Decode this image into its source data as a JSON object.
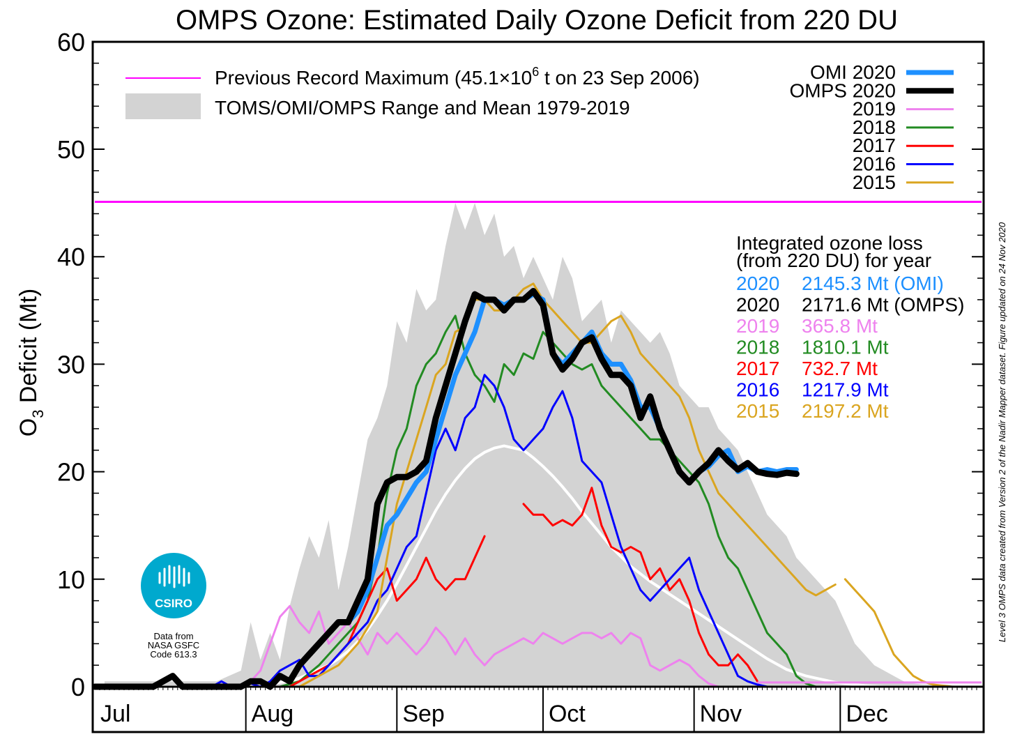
{
  "chart_data": {
    "type": "line",
    "title": "OMPS Ozone: Estimated Daily Ozone Deficit from 220 DU",
    "ylabel_main": "O",
    "ylabel_sub": "3",
    "ylabel_rest": " Deficit (Mt)",
    "ylim": [
      0,
      60
    ],
    "yticks": [
      "0",
      "10",
      "20",
      "30",
      "40",
      "50",
      "60"
    ],
    "months": [
      "Jul",
      "Aug",
      "Sep",
      "Oct",
      "Nov",
      "Dec"
    ],
    "x_units": "day of year",
    "xlim": [
      182,
      364
    ],
    "month_starts": [
      182,
      213,
      244,
      274,
      305,
      335
    ],
    "grid": false,
    "record": {
      "label_prefix": "Previous Record Maximum (45.1×10",
      "label_sup": "6",
      "label_suffix": "  t on 23 Sep 2006)",
      "value": 45.1,
      "color": "#ff00ff"
    },
    "range_label": "TOMS/OMI/OMPS Range and Mean 1979-2019",
    "range_color": "#d3d3d3",
    "mean_color": "#ffffff",
    "range": {
      "x": [
        184,
        195,
        207,
        212,
        214,
        216,
        218,
        220,
        222,
        224,
        226,
        228,
        230,
        232,
        234,
        236,
        238,
        240,
        242,
        244,
        246,
        248,
        250,
        252,
        254,
        256,
        258,
        260,
        262,
        264,
        266,
        268,
        270,
        272,
        274,
        276,
        278,
        280,
        282,
        284,
        286,
        288,
        290,
        292,
        294,
        296,
        298,
        300,
        302,
        304,
        306,
        308,
        310,
        312,
        314,
        316,
        318,
        320,
        322,
        324,
        326,
        328,
        330,
        332,
        334,
        336,
        338,
        340,
        342,
        344,
        346,
        348,
        350,
        352,
        356,
        360,
        364
      ],
      "upper": [
        0.5,
        0.5,
        0.5,
        1.5,
        6,
        2.5,
        5,
        2.5,
        7.5,
        11,
        14,
        12,
        15.5,
        9,
        13,
        18,
        23,
        25,
        28,
        34,
        32,
        37,
        35,
        36,
        41,
        45,
        42.5,
        45,
        42,
        44,
        40,
        41,
        38,
        40,
        38,
        36,
        40,
        38,
        34,
        35,
        36,
        32,
        35,
        34,
        33,
        32,
        33,
        31,
        28,
        27,
        26,
        26,
        24,
        23,
        22,
        20,
        18,
        16,
        15,
        14,
        12,
        11,
        10,
        9,
        8,
        6,
        4,
        3,
        2,
        1.5,
        1,
        0.5,
        0.3,
        0.2,
        0.2,
        0.1,
        0
      ],
      "mean": [
        0,
        0,
        0,
        0,
        0.2,
        0.2,
        0.3,
        0.4,
        0.5,
        0.8,
        1.2,
        1.6,
        2,
        2.6,
        3.3,
        4.2,
        5.3,
        6.6,
        8,
        9.6,
        11.3,
        13,
        14.7,
        16.4,
        17.9,
        19.2,
        20.3,
        21.2,
        21.8,
        22.2,
        22.4,
        22.2,
        22,
        21.3,
        20.5,
        19.6,
        18.6,
        17.5,
        16.3,
        15.2,
        14.1,
        13,
        12.1,
        11.2,
        10.5,
        9.8,
        9.2,
        8.6,
        8,
        7.4,
        6.8,
        6.2,
        5.6,
        5,
        4.4,
        3.8,
        3.2,
        2.6,
        2.1,
        1.6,
        1.3,
        1,
        0.8,
        0.6,
        0.4,
        0.3,
        0.2,
        0.1,
        0.05,
        0,
        0,
        0,
        0,
        0,
        0,
        0,
        0
      ]
    },
    "series": [
      {
        "name": "2019",
        "color": "#ee82ee",
        "width": 3,
        "total": " 365.8 Mt",
        "x": [
          208,
          210,
          212,
          214,
          216,
          218,
          220,
          222,
          224,
          226,
          228,
          230,
          232,
          234,
          236,
          238,
          240,
          242,
          244,
          246,
          248,
          250,
          252,
          254,
          256,
          258,
          260,
          262,
          264,
          266,
          268,
          270,
          272,
          274,
          276,
          278,
          280,
          282,
          284,
          286,
          288,
          290,
          292,
          294,
          296,
          298,
          300,
          302,
          304,
          306,
          308,
          310
        ],
        "y": [
          0,
          0,
          0,
          0.5,
          1.5,
          4,
          6.5,
          7.5,
          6,
          5,
          7,
          4,
          5,
          6,
          4.5,
          3,
          5,
          4,
          5,
          4,
          3,
          4,
          5.5,
          4.5,
          3,
          4.5,
          3,
          2,
          3,
          3.5,
          4,
          4.5,
          4,
          5,
          4.5,
          4,
          4.5,
          5,
          5,
          4.5,
          5,
          4,
          5,
          4.5,
          2,
          1.5,
          2,
          2.5,
          2,
          1,
          0.3,
          0
        ]
      },
      {
        "name": "2018",
        "color": "#228b22",
        "width": 3,
        "total": "1810.1 Mt",
        "x": [
          220,
          224,
          228,
          232,
          236,
          238,
          240,
          242,
          244,
          246,
          248,
          250,
          252,
          254,
          256,
          258,
          260,
          262,
          264,
          266,
          268,
          270,
          272,
          274,
          276,
          278,
          280,
          282,
          284,
          286,
          288,
          290,
          292,
          294,
          296,
          298,
          300,
          302,
          304,
          306,
          308,
          310,
          312,
          314,
          316,
          318,
          320,
          322,
          324,
          326,
          328,
          330,
          332
        ],
        "y": [
          0,
          0.5,
          2,
          4,
          6,
          8,
          12,
          18,
          22,
          24,
          28,
          30,
          31,
          33,
          34.5,
          31,
          29,
          28,
          26.5,
          30,
          29,
          31,
          30.5,
          33,
          32,
          31,
          30,
          29.5,
          30,
          28,
          27,
          26,
          25,
          24,
          23,
          23,
          22,
          21,
          20,
          19,
          17,
          14,
          12,
          11,
          9,
          7,
          5,
          4,
          3,
          1,
          0.3,
          0,
          0
        ]
      },
      {
        "name": "2017",
        "color": "#ff0000",
        "width": 3,
        "total": " 732.7 Mt",
        "segments": [
          {
            "x": [
              222,
              226,
              230,
              234,
              236,
              238,
              240,
              242,
              244,
              246,
              248,
              250,
              252,
              254,
              256,
              258,
              260,
              262
            ],
            "y": [
              0,
              1,
              2,
              4,
              6,
              8,
              10,
              11,
              8,
              9,
              10,
              12,
              10,
              9,
              10,
              10,
              12,
              14
            ]
          },
          {
            "x": [
              270,
              272,
              274,
              276,
              278,
              280,
              282,
              284,
              286,
              288,
              290,
              292,
              294,
              296,
              298,
              300,
              302,
              304,
              306,
              308,
              310,
              312,
              314,
              316,
              318
            ],
            "y": [
              17,
              16,
              16,
              15,
              15.5,
              15,
              16,
              18.5,
              15,
              13,
              12.5,
              13,
              12.5,
              10,
              11,
              9,
              10,
              8,
              5,
              3,
              2,
              2,
              3,
              2,
              0.5
            ]
          }
        ]
      },
      {
        "name": "2016",
        "color": "#0000ff",
        "width": 3,
        "total": "1217.9 Mt",
        "x": [
          206,
          208,
          210,
          212,
          214,
          216,
          218,
          220,
          222,
          224,
          226,
          228,
          230,
          232,
          234,
          236,
          238,
          240,
          242,
          244,
          246,
          248,
          250,
          252,
          254,
          256,
          258,
          260,
          262,
          264,
          266,
          268,
          270,
          272,
          274,
          276,
          278,
          280,
          282,
          284,
          286,
          288,
          290,
          292,
          294,
          296,
          298,
          300,
          302,
          304,
          306,
          308,
          310,
          312,
          314,
          316,
          318,
          320,
          322
        ],
        "y": [
          0,
          0.5,
          0,
          0,
          0.3,
          0,
          0.5,
          1.5,
          2,
          2.5,
          1,
          1,
          2,
          3,
          4,
          5,
          6,
          8,
          9,
          11,
          13,
          14,
          18,
          22,
          24,
          22,
          25,
          26,
          29,
          28,
          26,
          23,
          22,
          23,
          24,
          26,
          27.5,
          25,
          21,
          20,
          19,
          16,
          13,
          11,
          9,
          8,
          9,
          10,
          11,
          12,
          9,
          7,
          5,
          3,
          1,
          0.5,
          0.2,
          0,
          0
        ]
      },
      {
        "name": "2015",
        "color": "#daa520",
        "width": 3,
        "total": "2197.2 Mt",
        "segments": [
          {
            "x": [
              224,
              228,
              232,
              236,
              240,
              242,
              244,
              246,
              248,
              250,
              252,
              254,
              256,
              258,
              260,
              262,
              264,
              266,
              268,
              270,
              272,
              274,
              276,
              278,
              280,
              282,
              284,
              286,
              288,
              290,
              292,
              294,
              296,
              298,
              300,
              302,
              304,
              306,
              308,
              310,
              312,
              314,
              316,
              318,
              320,
              322,
              324,
              326,
              328,
              330,
              332,
              334
            ],
            "y": [
              0,
              1,
              2,
              4,
              7,
              12,
              17,
              20,
              23,
              26,
              29,
              30,
              33,
              33.5,
              36,
              36,
              35,
              35,
              36,
              37,
              37.5,
              36,
              35,
              34,
              33,
              32,
              32,
              33,
              34,
              34.5,
              33,
              31,
              30,
              29,
              28,
              27,
              25,
              22,
              20,
              18,
              17,
              16,
              15,
              14,
              13,
              12,
              11,
              10,
              9,
              8.5,
              9,
              9.5
            ]
          },
          {
            "x": [
              336,
              338,
              340,
              342,
              344,
              346,
              348,
              350,
              352,
              354,
              356,
              358,
              360
            ],
            "y": [
              10,
              9,
              8,
              7,
              5,
              3,
              2,
              1,
              0.5,
              0.2,
              0.1,
              0,
              0
            ]
          }
        ]
      },
      {
        "name": "OMI 2020",
        "color": "#1e90ff",
        "width": 7,
        "total": "2145.3 Mt (OMI)",
        "total_year": "2020",
        "x": [
          182,
          188,
          194,
          198,
          200,
          202,
          206,
          210,
          212,
          214,
          216,
          218,
          220,
          222,
          224,
          226,
          228,
          230,
          232,
          234,
          236,
          238,
          240,
          242,
          244,
          246,
          248,
          250,
          252,
          254,
          256,
          258,
          260,
          262,
          264,
          266,
          268,
          270,
          272,
          274,
          276,
          278,
          280,
          282,
          284,
          286,
          288,
          290,
          292,
          294,
          296,
          298,
          300,
          302,
          304,
          306,
          308,
          310,
          312,
          314,
          316,
          318,
          320,
          322,
          324,
          326
        ],
        "y": [
          0,
          0,
          0,
          1,
          0,
          0,
          0,
          0,
          0,
          0.5,
          0.5,
          0,
          1,
          0.5,
          2,
          3,
          4,
          5,
          6,
          6,
          7,
          9,
          12,
          15,
          16,
          17.5,
          19,
          20,
          23,
          26,
          29,
          31,
          33,
          36,
          36,
          35.5,
          36,
          36,
          36.5,
          36,
          31,
          30,
          31,
          32,
          33,
          31,
          30,
          30,
          28.5,
          26,
          26,
          24,
          22,
          20,
          19,
          20,
          20.5,
          21.5,
          22,
          20,
          20.5,
          20,
          20.2,
          20,
          20.2,
          20.2
        ]
      },
      {
        "name": "OMPS 2020",
        "color": "#000000",
        "width": 9,
        "total": "2171.6 Mt (OMPS)",
        "total_year": "2020",
        "x": [
          182,
          188,
          194,
          198,
          200,
          202,
          206,
          210,
          212,
          214,
          216,
          218,
          220,
          222,
          224,
          226,
          228,
          230,
          232,
          234,
          236,
          238,
          240,
          242,
          244,
          246,
          248,
          250,
          252,
          254,
          256,
          258,
          260,
          262,
          264,
          266,
          268,
          270,
          272,
          274,
          276,
          278,
          280,
          282,
          284,
          286,
          288,
          290,
          292,
          294,
          296,
          298,
          300,
          302,
          304,
          306,
          308,
          310,
          312,
          314,
          316,
          318,
          320,
          322,
          324,
          326
        ],
        "y": [
          0,
          0,
          0,
          1,
          0,
          0,
          0,
          0,
          0,
          0.5,
          0.5,
          0,
          1,
          0.5,
          2,
          3,
          4,
          5,
          6,
          6,
          8,
          10,
          17,
          19,
          19.5,
          19.5,
          20,
          21,
          25,
          28,
          31,
          34,
          36.5,
          36,
          36,
          35,
          36,
          36,
          36.8,
          35.5,
          31,
          29.5,
          30.5,
          32,
          32.5,
          30.5,
          29,
          29,
          28,
          25,
          27,
          24,
          22,
          20,
          19,
          20,
          20.8,
          22,
          21,
          20.2,
          20.8,
          20,
          19.8,
          19.7,
          19.9,
          19.8
        ]
      }
    ],
    "legend_order": [
      "OMI 2020",
      "OMPS 2020",
      "2019",
      "2018",
      "2017",
      "2016",
      "2015"
    ],
    "loss_heading_1": "Integrated ozone loss",
    "loss_heading_2": "(from 220 DU) for year",
    "loss_rows": [
      {
        "year": "2020",
        "total": "2145.3 Mt (OMI)",
        "color": "#1e90ff"
      },
      {
        "year": "2020",
        "total": "2171.6 Mt (OMPS)",
        "color": "#000000"
      },
      {
        "year": "2019",
        "total": " 365.8 Mt",
        "color": "#ee82ee"
      },
      {
        "year": "2018",
        "total": "1810.1 Mt",
        "color": "#228b22"
      },
      {
        "year": "2017",
        "total": " 732.7 Mt",
        "color": "#ff0000"
      },
      {
        "year": "2016",
        "total": "1217.9 Mt",
        "color": "#0000ff"
      },
      {
        "year": "2015",
        "total": "2197.2 Mt",
        "color": "#daa520"
      }
    ],
    "side_note": "Level 3 OMPS data created from Version 2 of the Nadir Mapper dataset. Figure updated on 24 Nov 2020",
    "logo_text": "CSIRO",
    "logo_color": "#00a9ce",
    "credit_lines": [
      "Data from",
      "NASA GSFC",
      "Code 613.3"
    ]
  }
}
